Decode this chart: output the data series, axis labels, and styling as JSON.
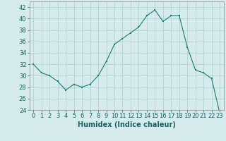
{
  "x": [
    0,
    1,
    2,
    3,
    4,
    5,
    6,
    7,
    8,
    9,
    10,
    11,
    12,
    13,
    14,
    15,
    16,
    17,
    18,
    19,
    20,
    21,
    22,
    23
  ],
  "y": [
    32,
    30.5,
    30,
    29,
    27.5,
    28.5,
    28,
    28.5,
    30,
    32.5,
    35.5,
    36.5,
    37.5,
    38.5,
    40.5,
    41.5,
    39.5,
    40.5,
    40.5,
    35,
    31,
    30.5,
    29.5,
    23.5
  ],
  "line_color": "#1a7a6e",
  "marker": "s",
  "marker_size": 2,
  "bg_color": "#d6ecec",
  "grid_color": "#aacfcf",
  "xlabel": "Humidex (Indice chaleur)",
  "ylim": [
    24,
    43
  ],
  "xlim": [
    -0.5,
    23.5
  ],
  "yticks": [
    24,
    26,
    28,
    30,
    32,
    34,
    36,
    38,
    40,
    42
  ],
  "xticks": [
    0,
    1,
    2,
    3,
    4,
    5,
    6,
    7,
    8,
    9,
    10,
    11,
    12,
    13,
    14,
    15,
    16,
    17,
    18,
    19,
    20,
    21,
    22,
    23
  ],
  "tick_fontsize": 6,
  "xlabel_fontsize": 7,
  "tick_color": "#1a6060",
  "label_color": "#1a6060"
}
